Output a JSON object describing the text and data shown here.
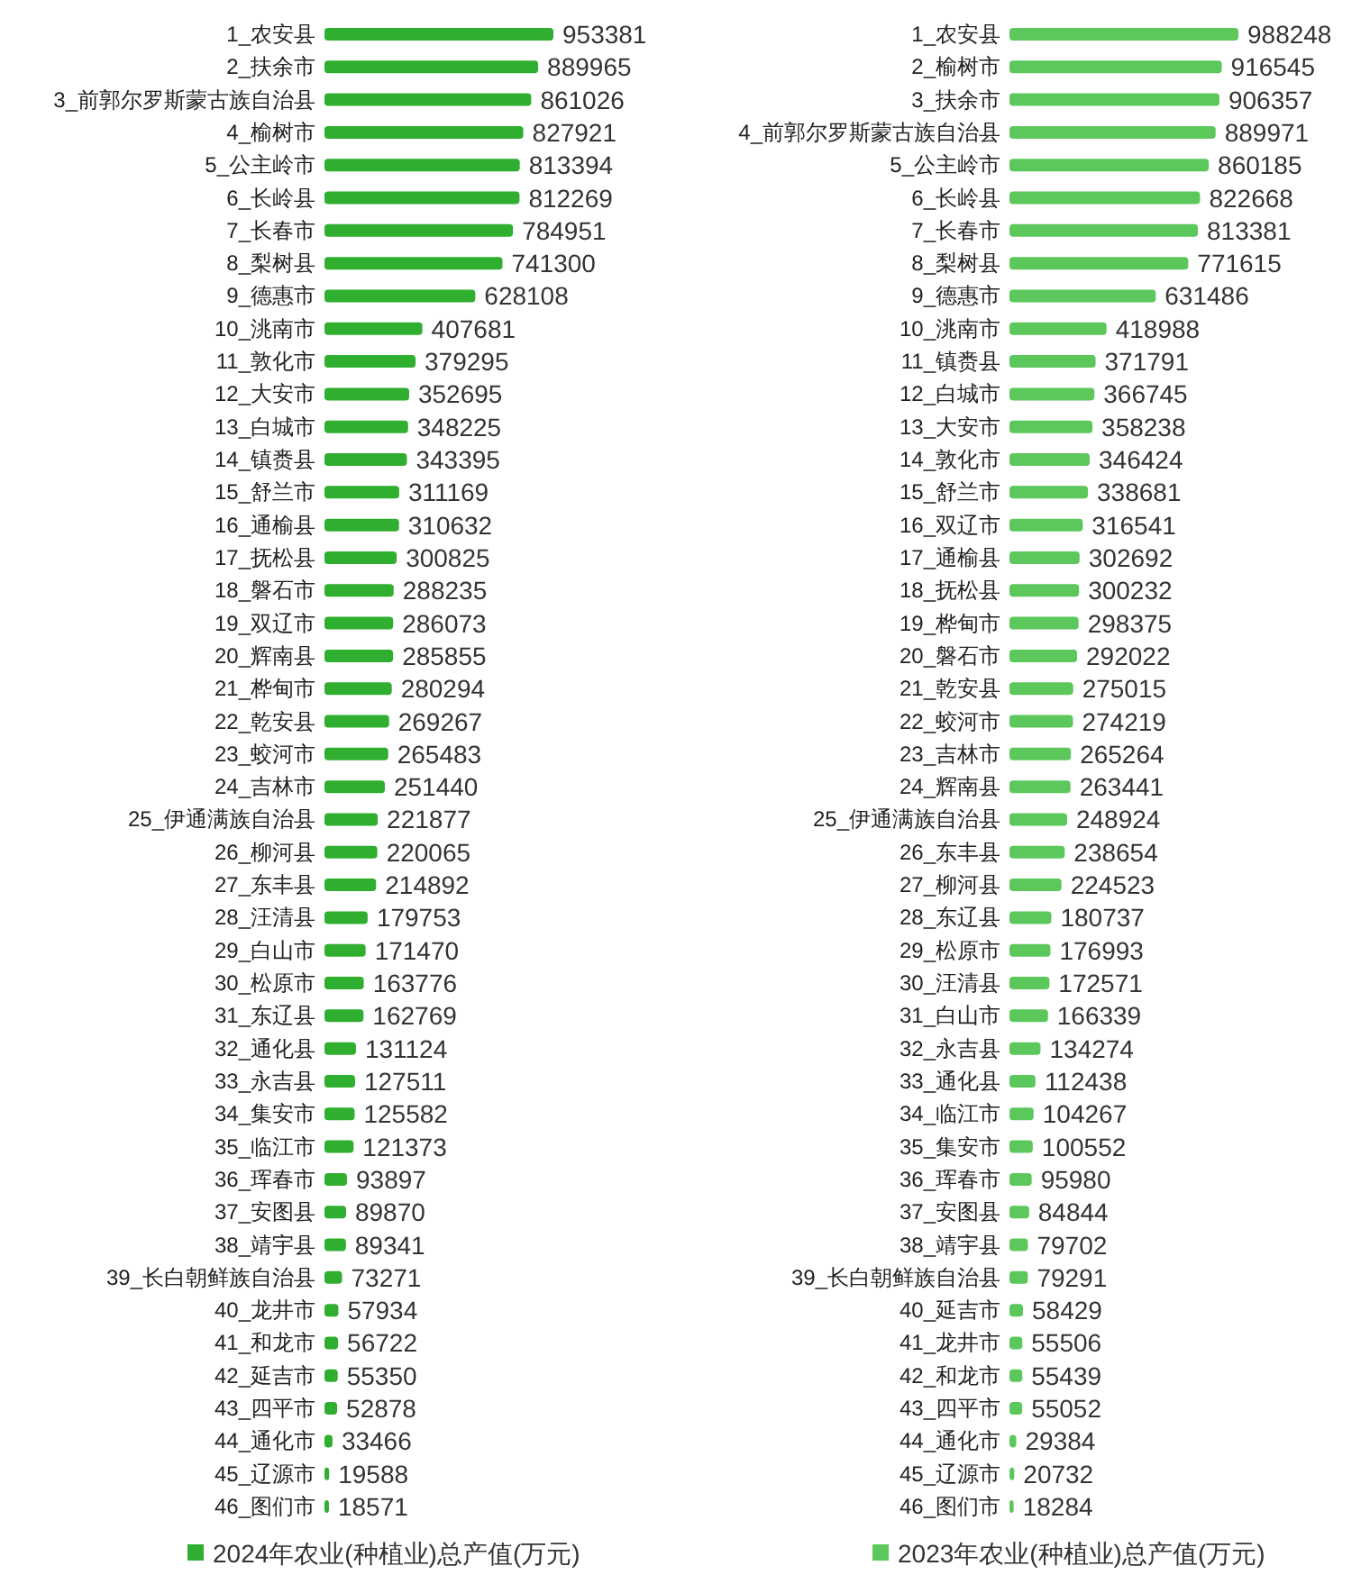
{
  "chart_data": [
    {
      "type": "bar",
      "orientation": "horizontal",
      "data_labels": true,
      "legend": "bottom",
      "categories": [
        "1_农安县",
        "2_扶余市",
        "3_前郭尔罗斯蒙古族自治县",
        "4_榆树市",
        "5_公主岭市",
        "6_长岭县",
        "7_长春市",
        "8_梨树县",
        "9_德惠市",
        "10_洮南市",
        "11_敦化市",
        "12_大安市",
        "13_白城市",
        "14_镇赉县",
        "15_舒兰市",
        "16_通榆县",
        "17_抚松县",
        "18_磐石市",
        "19_双辽市",
        "20_辉南县",
        "21_桦甸市",
        "22_乾安县",
        "23_蛟河市",
        "24_吉林市",
        "25_伊通满族自治县",
        "26_柳河县",
        "27_东丰县",
        "28_汪清县",
        "29_白山市",
        "30_松原市",
        "31_东辽县",
        "32_通化县",
        "33_永吉县",
        "34_集安市",
        "35_临江市",
        "36_珲春市",
        "37_安图县",
        "38_靖宇县",
        "39_长白朝鲜族自治县",
        "40_龙井市",
        "41_和龙市",
        "42_延吉市",
        "43_四平市",
        "44_通化市",
        "45_辽源市",
        "46_图们市"
      ],
      "series": [
        {
          "name": "2024年农业(种植业)总产值(万元)",
          "color": "#2fae2f",
          "values": [
            953381,
            889965,
            861026,
            827921,
            813394,
            812269,
            784951,
            741300,
            628108,
            407681,
            379295,
            352695,
            348225,
            343395,
            311169,
            310632,
            300825,
            288235,
            286073,
            285855,
            280294,
            269267,
            265483,
            251440,
            221877,
            220065,
            214892,
            179753,
            171470,
            163776,
            162769,
            131124,
            127511,
            125582,
            121373,
            93897,
            89870,
            89341,
            73271,
            57934,
            56722,
            55350,
            52878,
            33466,
            19588,
            18571
          ]
        }
      ]
    },
    {
      "type": "bar",
      "orientation": "horizontal",
      "data_labels": true,
      "legend": "bottom",
      "categories": [
        "1_农安县",
        "2_榆树市",
        "3_扶余市",
        "4_前郭尔罗斯蒙古族自治县",
        "5_公主岭市",
        "6_长岭县",
        "7_长春市",
        "8_梨树县",
        "9_德惠市",
        "10_洮南市",
        "11_镇赉县",
        "12_白城市",
        "13_大安市",
        "14_敦化市",
        "15_舒兰市",
        "16_双辽市",
        "17_通榆县",
        "18_抚松县",
        "19_桦甸市",
        "20_磐石市",
        "21_乾安县",
        "22_蛟河市",
        "23_吉林市",
        "24_辉南县",
        "25_伊通满族自治县",
        "26_东丰县",
        "27_柳河县",
        "28_东辽县",
        "29_松原市",
        "30_汪清县",
        "31_白山市",
        "32_永吉县",
        "33_通化县",
        "34_临江市",
        "35_集安市",
        "36_珲春市",
        "37_安图县",
        "38_靖宇县",
        "39_长白朝鲜族自治县",
        "40_延吉市",
        "41_龙井市",
        "42_和龙市",
        "43_四平市",
        "44_通化市",
        "45_辽源市",
        "46_图们市"
      ],
      "series": [
        {
          "name": "2023年农业(种植业)总产值(万元)",
          "color": "#5cc85c",
          "values": [
            988248,
            916545,
            906357,
            889971,
            860185,
            822668,
            813381,
            771615,
            631486,
            418988,
            371791,
            366745,
            358238,
            346424,
            338681,
            316541,
            302692,
            300232,
            298375,
            292022,
            275015,
            274219,
            265264,
            263441,
            248924,
            238654,
            224523,
            180737,
            176993,
            172571,
            166339,
            134274,
            112438,
            104267,
            100552,
            95980,
            84844,
            79702,
            79291,
            58429,
            55506,
            55439,
            55052,
            29384,
            20732,
            18284
          ]
        }
      ]
    }
  ]
}
